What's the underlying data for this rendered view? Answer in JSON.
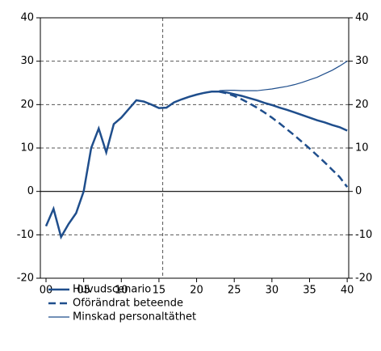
{
  "chart_data": {
    "type": "line",
    "x": [
      0,
      1,
      2,
      3,
      4,
      5,
      6,
      7,
      8,
      9,
      10,
      11,
      12,
      13,
      14,
      15,
      16,
      17,
      18,
      19,
      20,
      21,
      22,
      23,
      24,
      25,
      26,
      27,
      28,
      29,
      30,
      31,
      32,
      33,
      34,
      35,
      36,
      37,
      38,
      39,
      40
    ],
    "series": [
      {
        "name": "Huvudscenario",
        "color": "#1f4e8c",
        "line_width": 2.5,
        "style": "solid",
        "values": [
          -8,
          -4,
          -10.5,
          -7.5,
          -5,
          0,
          10,
          14.5,
          9,
          15.5,
          17,
          19,
          21,
          20.7,
          20,
          19.2,
          19.3,
          20.5,
          21.2,
          21.8,
          22.3,
          22.7,
          23,
          23,
          22.8,
          22.4,
          22,
          21.5,
          21,
          20.4,
          19.9,
          19.3,
          18.8,
          18.2,
          17.6,
          17,
          16.4,
          15.9,
          15.3,
          14.8,
          14
        ]
      },
      {
        "name": "Oförändrat beteende",
        "color": "#1f4e8c",
        "line_width": 2.5,
        "style": "dashed",
        "values": [
          null,
          null,
          null,
          null,
          null,
          null,
          null,
          null,
          null,
          null,
          null,
          null,
          null,
          null,
          null,
          null,
          null,
          null,
          null,
          null,
          null,
          null,
          null,
          23,
          22.6,
          22,
          21.2,
          20.3,
          19.3,
          18.2,
          17,
          15.7,
          14.3,
          12.9,
          11.4,
          9.9,
          8.3,
          6.7,
          5,
          3.3,
          1
        ]
      },
      {
        "name": "Minskad personaltäthet",
        "color": "#1f4e8c",
        "line_width": 1.2,
        "style": "solid",
        "values": [
          null,
          null,
          null,
          null,
          null,
          null,
          null,
          null,
          null,
          null,
          null,
          null,
          null,
          null,
          null,
          null,
          null,
          null,
          null,
          null,
          null,
          null,
          null,
          23.2,
          23.3,
          23.3,
          23.2,
          23.2,
          23.2,
          23.4,
          23.6,
          23.9,
          24.2,
          24.6,
          25.1,
          25.7,
          26.3,
          27.1,
          27.9,
          28.9,
          30
        ]
      }
    ],
    "xlim": [
      -0.75,
      40.2
    ],
    "ylim": [
      -20,
      40
    ],
    "y2lim": [
      -20,
      40
    ],
    "xticks": [
      {
        "value": 0,
        "label": "00"
      },
      {
        "value": 5,
        "label": "05"
      },
      10,
      15,
      20,
      25,
      30,
      35,
      40
    ],
    "yticks": [
      -20,
      -10,
      0,
      10,
      20,
      30,
      40
    ],
    "vline": 15.5,
    "grid": true
  }
}
